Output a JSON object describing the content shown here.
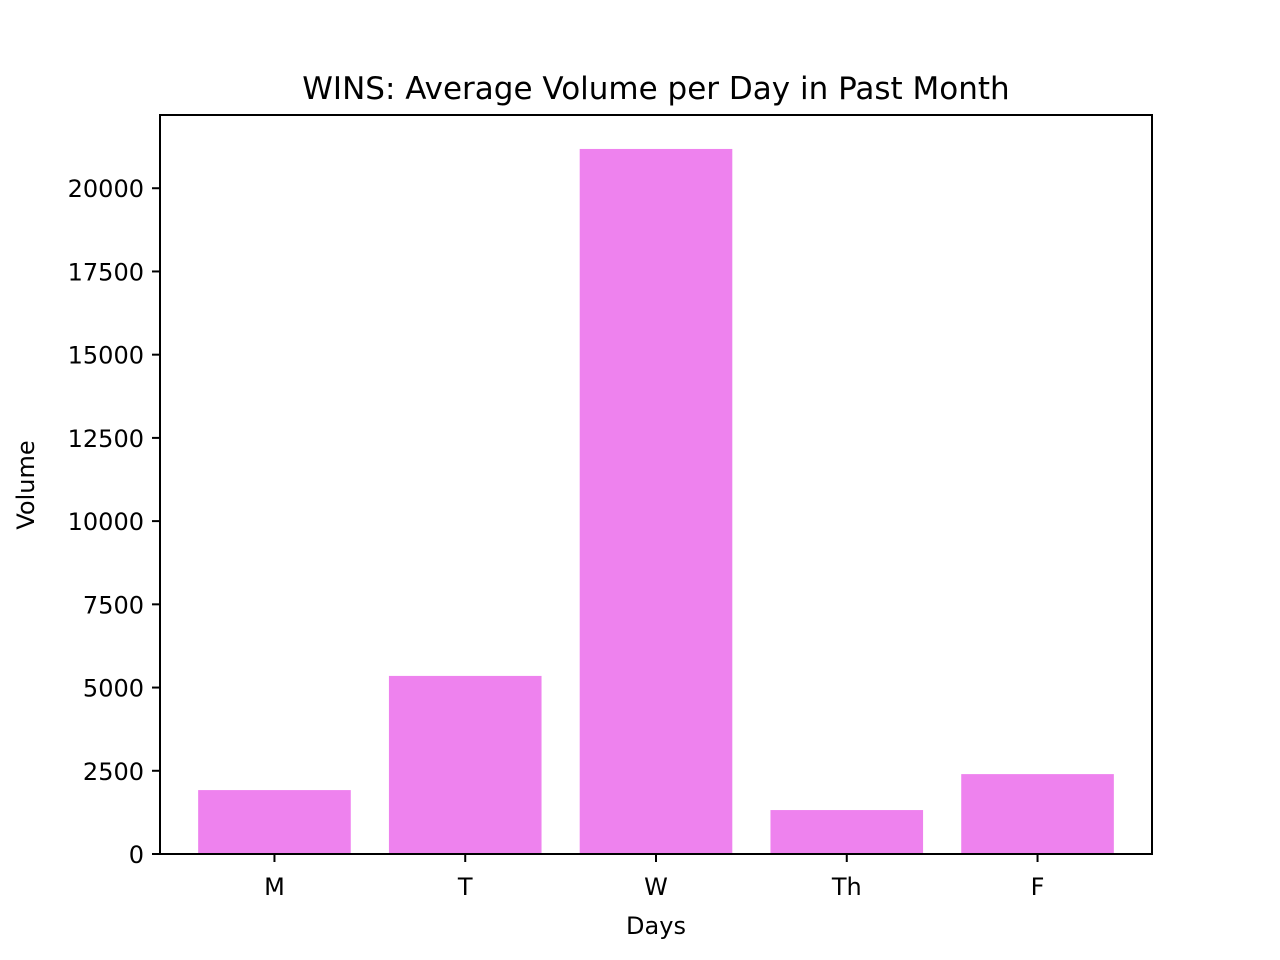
{
  "chart_data": {
    "type": "bar",
    "title": "WINS: Average Volume per Day in Past Month",
    "xlabel": "Days",
    "ylabel": "Volume",
    "categories": [
      "M",
      "T",
      "W",
      "Th",
      "F"
    ],
    "values": [
      1920,
      5350,
      21180,
      1320,
      2400
    ],
    "ylim": [
      0,
      22200
    ],
    "yticks": [
      0,
      2500,
      5000,
      7500,
      10000,
      12500,
      15000,
      17500,
      20000
    ],
    "bar_color": "#EE82EE",
    "grid": false,
    "legend": "none"
  }
}
